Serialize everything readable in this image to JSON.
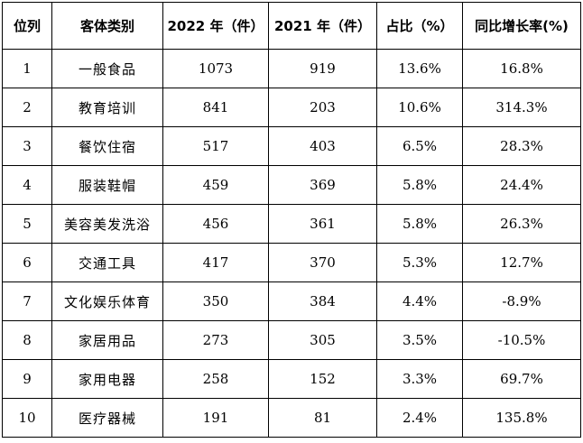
{
  "table": {
    "headers": [
      "位列",
      "客体类别",
      "2022 年（件）",
      "2021 年（件）",
      "占比（%）",
      "同比增长率(%)"
    ],
    "rows": [
      {
        "rank": "1",
        "category": "一般食品",
        "y2022": "1073",
        "y2021": "919",
        "share": "13.6%",
        "growth": "16.8%"
      },
      {
        "rank": "2",
        "category": "教育培训",
        "y2022": "841",
        "y2021": "203",
        "share": "10.6%",
        "growth": "314.3%"
      },
      {
        "rank": "3",
        "category": "餐饮住宿",
        "y2022": "517",
        "y2021": "403",
        "share": "6.5%",
        "growth": "28.3%"
      },
      {
        "rank": "4",
        "category": "服装鞋帽",
        "y2022": "459",
        "y2021": "369",
        "share": "5.8%",
        "growth": "24.4%"
      },
      {
        "rank": "5",
        "category": "美容美发洗浴",
        "y2022": "456",
        "y2021": "361",
        "share": "5.8%",
        "growth": "26.3%"
      },
      {
        "rank": "6",
        "category": "交通工具",
        "y2022": "417",
        "y2021": "370",
        "share": "5.3%",
        "growth": "12.7%"
      },
      {
        "rank": "7",
        "category": "文化娱乐体育",
        "y2022": "350",
        "y2021": "384",
        "share": "4.4%",
        "growth": "-8.9%"
      },
      {
        "rank": "8",
        "category": "家居用品",
        "y2022": "273",
        "y2021": "305",
        "share": "3.5%",
        "growth": "-10.5%"
      },
      {
        "rank": "9",
        "category": "家用电器",
        "y2022": "258",
        "y2021": "152",
        "share": "3.3%",
        "growth": "69.7%"
      },
      {
        "rank": "10",
        "category": "医疗器械",
        "y2022": "191",
        "y2021": "81",
        "share": "2.4%",
        "growth": "135.8%"
      }
    ]
  }
}
